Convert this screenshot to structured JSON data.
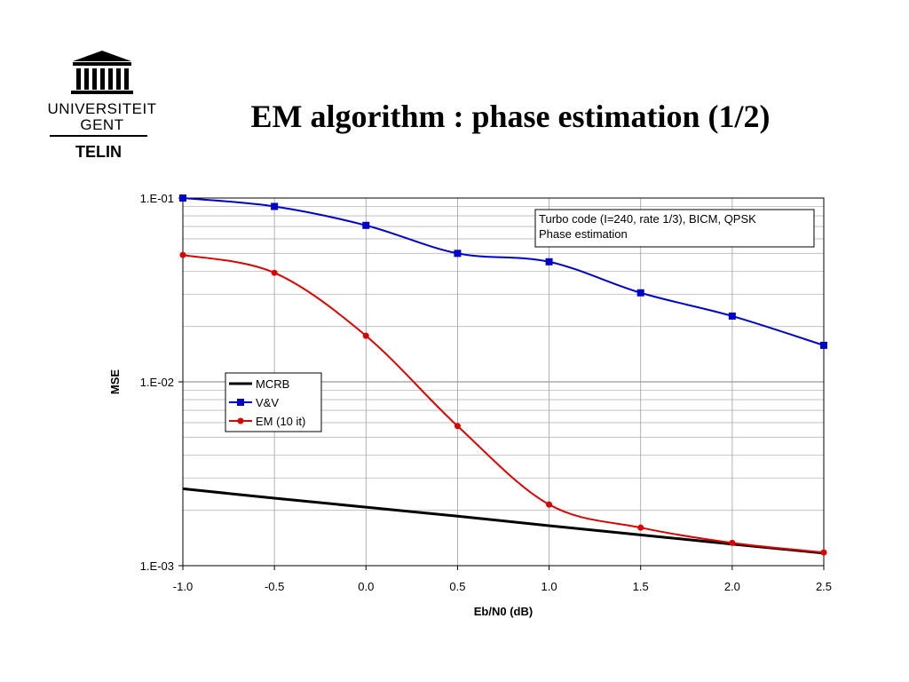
{
  "logo": {
    "line1": "UNIVERSITEIT",
    "line2": "GENT",
    "line3": "TELIN"
  },
  "slide": {
    "title": "EM algorithm : phase estimation (1/2)"
  },
  "chart_data": {
    "type": "line",
    "xlabel": "Eb/N0 (dB)",
    "ylabel": "MSE",
    "xlim": [
      -1.0,
      2.5
    ],
    "ylim": [
      0.001,
      0.1
    ],
    "yscale": "log",
    "grid": true,
    "x_ticks": [
      "-1.0",
      "-0.5",
      "0.0",
      "0.5",
      "1.0",
      "1.5",
      "2.0",
      "2.5"
    ],
    "y_ticks": [
      "1.E-01",
      "1.E-02",
      "1.E-03"
    ],
    "annotation": [
      "Turbo code  (I=240, rate 1/3), BICM, QPSK",
      "Phase estimation"
    ],
    "legend_position": "left-middle",
    "series": [
      {
        "name": "MCRB",
        "color": "#000000",
        "marker": "none",
        "x": [
          -1.0,
          -0.5,
          0.0,
          0.5,
          1.0,
          1.5,
          2.0,
          2.5
        ],
        "y": [
          0.00262,
          0.00233,
          0.00208,
          0.00186,
          0.00165,
          0.00147,
          0.00131,
          0.00117
        ]
      },
      {
        "name": "V&V",
        "color": "#0000cc",
        "marker": "square",
        "x": [
          -1.0,
          -0.5,
          0.0,
          0.5,
          1.0,
          1.5,
          2.0,
          2.5
        ],
        "y": [
          0.1,
          0.09,
          0.071,
          0.05,
          0.045,
          0.0305,
          0.0228,
          0.0158
        ]
      },
      {
        "name": "EM (10 it)",
        "color": "#dd0000",
        "marker": "circle",
        "x": [
          -1.0,
          -0.5,
          0.0,
          0.5,
          1.0,
          1.5,
          2.0,
          2.5
        ],
        "y": [
          0.049,
          0.0392,
          0.0178,
          0.00575,
          0.00215,
          0.00161,
          0.00133,
          0.00118
        ]
      }
    ]
  }
}
